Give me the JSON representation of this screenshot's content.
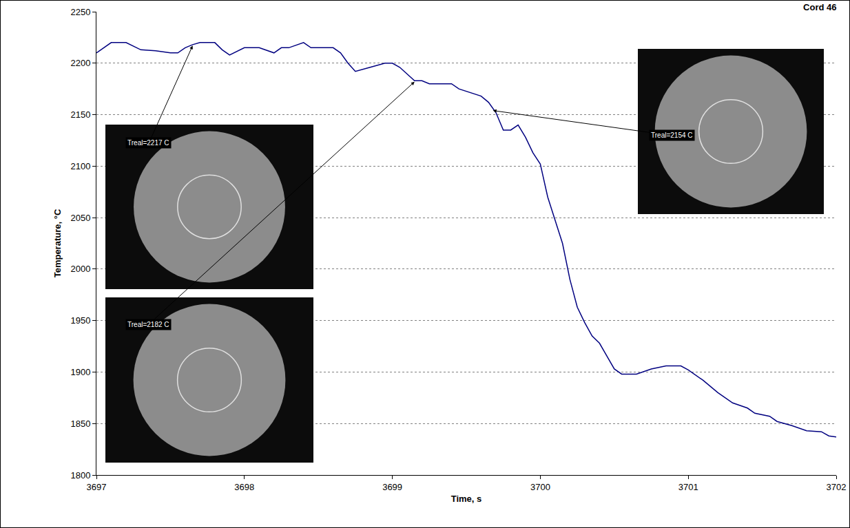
{
  "chart_data": {
    "type": "line",
    "title": "Cord 46",
    "x_label": "Time, s",
    "y_label": "Temperature, °C",
    "color": "#000080",
    "grid": true,
    "xlim": [
      3697,
      3702
    ],
    "xticks": [
      3697,
      3698,
      3699,
      3700,
      3701,
      3702
    ],
    "ylim": [
      1800,
      2250
    ],
    "yticks": [
      1800,
      1850,
      1900,
      1950,
      2000,
      2050,
      2100,
      2150,
      2200,
      2250
    ],
    "x": [
      3697.0,
      3697.1,
      3697.2,
      3697.3,
      3697.4,
      3697.5,
      3697.55,
      3697.6,
      3697.65,
      3697.7,
      3697.8,
      3697.85,
      3697.9,
      3698.0,
      3698.1,
      3698.2,
      3698.25,
      3698.3,
      3698.4,
      3698.45,
      3698.6,
      3698.65,
      3698.7,
      3698.75,
      3698.85,
      3698.95,
      3699.0,
      3699.05,
      3699.15,
      3699.2,
      3699.25,
      3699.4,
      3699.45,
      3699.6,
      3699.65,
      3699.7,
      3699.75,
      3699.8,
      3699.85,
      3699.9,
      3699.95,
      3700.0,
      3700.05,
      3700.1,
      3700.15,
      3700.2,
      3700.25,
      3700.3,
      3700.35,
      3700.4,
      3700.45,
      3700.5,
      3700.55,
      3700.65,
      3700.75,
      3700.85,
      3700.95,
      3701.0,
      3701.1,
      3701.2,
      3701.3,
      3701.4,
      3701.45,
      3701.55,
      3701.6,
      3701.7,
      3701.8,
      3701.9,
      3701.95,
      3702.0
    ],
    "values": [
      2210,
      2220,
      2220,
      2213,
      2212,
      2210,
      2210,
      2215,
      2218,
      2220,
      2220,
      2213,
      2208,
      2215,
      2215,
      2210,
      2215,
      2215,
      2220,
      2215,
      2215,
      2210,
      2200,
      2192,
      2196,
      2200,
      2200,
      2196,
      2183,
      2183,
      2180,
      2180,
      2175,
      2168,
      2162,
      2152,
      2135,
      2135,
      2140,
      2128,
      2113,
      2102,
      2070,
      2048,
      2025,
      1990,
      1963,
      1948,
      1935,
      1928,
      1915,
      1903,
      1898,
      1898,
      1903,
      1906,
      1906,
      1902,
      1892,
      1880,
      1870,
      1865,
      1860,
      1857,
      1852,
      1848,
      1843,
      1842,
      1838,
      1837
    ],
    "annotations": [
      {
        "text": "Treal=2217 C",
        "x": 3697.65,
        "y": 2217
      },
      {
        "text": "Treal=2182 C",
        "x": 3699.15,
        "y": 2182
      },
      {
        "text": "Treal=2154 C",
        "x": 3699.68,
        "y": 2154
      }
    ]
  }
}
